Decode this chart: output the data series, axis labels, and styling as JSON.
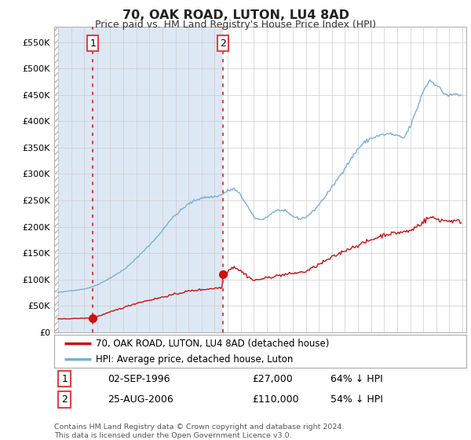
{
  "title": "70, OAK ROAD, LUTON, LU4 8AD",
  "subtitle": "Price paid vs. HM Land Registry's House Price Index (HPI)",
  "hpi_label": "HPI: Average price, detached house, Luton",
  "price_label": "70, OAK ROAD, LUTON, LU4 8AD (detached house)",
  "footnote": "Contains HM Land Registry data © Crown copyright and database right 2024.\nThis data is licensed under the Open Government Licence v3.0.",
  "sale1_date": "02-SEP-1996",
  "sale1_price": "£27,000",
  "sale1_hpi": "64% ↓ HPI",
  "sale1_year": 1996.67,
  "sale1_value": 27000,
  "sale2_date": "25-AUG-2006",
  "sale2_price": "£110,000",
  "sale2_hpi": "54% ↓ HPI",
  "sale2_year": 2006.65,
  "sale2_value": 110000,
  "ylim": [
    0,
    580000
  ],
  "yticks": [
    0,
    50000,
    100000,
    150000,
    200000,
    250000,
    300000,
    350000,
    400000,
    450000,
    500000,
    550000
  ],
  "ytick_labels": [
    "£0",
    "£50K",
    "£100K",
    "£150K",
    "£200K",
    "£250K",
    "£300K",
    "£350K",
    "£400K",
    "£450K",
    "£500K",
    "£550K"
  ],
  "hpi_color": "#7ab0d4",
  "price_color": "#cc1111",
  "vline_color": "#dd4444",
  "dot_color": "#cc1111",
  "background_color": "#ffffff",
  "grid_color": "#cccccc",
  "hatch_color": "#cccccc",
  "shade_color": "#ddeeff",
  "xlim_start": 1993.7,
  "xlim_end": 2025.3,
  "label1": "1",
  "label2": "2"
}
